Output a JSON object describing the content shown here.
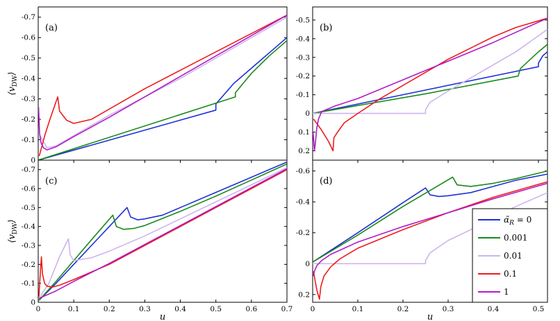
{
  "colors": {
    "0": "#1f2fd6",
    "0.001": "#1a8a1a",
    "0.01": "#cdb4ee",
    "0.1": "#ee1b1b",
    "1": "#b01cc6"
  },
  "legend": {
    "title_symbol": "α̃",
    "title_subscript": "R",
    "entries": [
      {
        "key": "0",
        "label": "= 0"
      },
      {
        "key": "0.001",
        "label": "0.001"
      },
      {
        "key": "0.01",
        "label": "0.01"
      },
      {
        "key": "0.1",
        "label": "0.1"
      },
      {
        "key": "1",
        "label": "1"
      }
    ]
  },
  "chart_data": [
    {
      "panel": "(a)",
      "type": "line",
      "xlabel": "u",
      "ylabel": "⟨v_DW⟩",
      "xlim": [
        0,
        0.7
      ],
      "ylim": [
        0,
        -0.75
      ],
      "xticks": [],
      "yticks": [
        0,
        -0.1,
        -0.2,
        -0.3,
        -0.4,
        -0.5,
        -0.6,
        -0.7
      ],
      "ytick_labels": [
        "0",
        "-0.1",
        "-0.2",
        "-0.3",
        "-0.4",
        "-0.5",
        "-0.6",
        "-0.7"
      ],
      "series": [
        {
          "key": "0",
          "x": [
            0,
            0.5,
            0.5,
            0.55,
            0.6,
            0.65,
            0.7
          ],
          "y": [
            0,
            -0.245,
            -0.275,
            -0.375,
            -0.45,
            -0.525,
            -0.6
          ]
        },
        {
          "key": "0.001",
          "x": [
            0,
            0.555,
            0.555,
            0.6,
            0.65,
            0.7
          ],
          "y": [
            0,
            -0.31,
            -0.33,
            -0.425,
            -0.51,
            -0.585
          ]
        },
        {
          "key": "0.01",
          "x": [
            0.005,
            0.025,
            0.05,
            0.1,
            0.2,
            0.3,
            0.4,
            0.5,
            0.6,
            0.7
          ],
          "y": [
            -0.12,
            -0.06,
            -0.07,
            -0.12,
            -0.22,
            -0.31,
            -0.4,
            -0.5,
            -0.6,
            -0.7
          ]
        },
        {
          "key": "0.1",
          "x": [
            0.003,
            0.02,
            0.035,
            0.055,
            0.06,
            0.08,
            0.1,
            0.15,
            0.2,
            0.3,
            0.4,
            0.5,
            0.6,
            0.7
          ],
          "y": [
            -0.02,
            -0.13,
            -0.21,
            -0.31,
            -0.24,
            -0.195,
            -0.18,
            -0.2,
            -0.25,
            -0.35,
            -0.44,
            -0.53,
            -0.62,
            -0.71
          ]
        },
        {
          "key": "1",
          "x": [
            0.001,
            0.004,
            0.008,
            0.015,
            0.025,
            0.05,
            0.1,
            0.2,
            0.3,
            0.4,
            0.5,
            0.6,
            0.7
          ],
          "y": [
            -0.26,
            -0.13,
            -0.085,
            -0.06,
            -0.05,
            -0.065,
            -0.115,
            -0.21,
            -0.31,
            -0.41,
            -0.51,
            -0.61,
            -0.71
          ]
        }
      ]
    },
    {
      "panel": "(b)",
      "type": "line",
      "xlabel": "u",
      "ylabel": "",
      "xlim": [
        0,
        0.52
      ],
      "ylim": [
        0.25,
        -0.57
      ],
      "xticks": [],
      "yticks": [
        0.2,
        0.1,
        0,
        -0.1,
        -0.2,
        -0.3,
        -0.4,
        -0.5
      ],
      "ytick_labels": [
        "0.2",
        "0.1",
        "0",
        "-0.1",
        "-0.2",
        "-0.3",
        "-0.4",
        "-0.5"
      ],
      "series": [
        {
          "key": "0",
          "x": [
            0,
            0.25,
            0.5,
            0.5,
            0.51,
            0.52
          ],
          "y": [
            0,
            -0.125,
            -0.25,
            -0.27,
            -0.31,
            -0.33
          ]
        },
        {
          "key": "0.001",
          "x": [
            0,
            0.25,
            0.455,
            0.46,
            0.48,
            0.5,
            0.52
          ],
          "y": [
            0,
            -0.105,
            -0.2,
            -0.24,
            -0.285,
            -0.33,
            -0.37
          ]
        },
        {
          "key": "0.01",
          "x": [
            0,
            0.25,
            0.25,
            0.26,
            0.3,
            0.35,
            0.4,
            0.45,
            0.52
          ],
          "y": [
            0,
            0,
            -0.02,
            -0.06,
            -0.12,
            -0.19,
            -0.26,
            -0.33,
            -0.45
          ]
        },
        {
          "key": "0.1",
          "x": [
            0.002,
            0.02,
            0.035,
            0.045,
            0.047,
            0.055,
            0.07,
            0.1,
            0.15,
            0.2,
            0.25,
            0.3,
            0.35,
            0.4,
            0.45,
            0.52
          ],
          "y": [
            0.03,
            0.09,
            0.15,
            0.2,
            0.13,
            0.1,
            0.05,
            0,
            -0.08,
            -0.15,
            -0.22,
            -0.29,
            -0.35,
            -0.41,
            -0.46,
            -0.51
          ]
        },
        {
          "key": "1",
          "x": [
            0.001,
            0.004,
            0.006,
            0.009,
            0.013,
            0.02,
            0.05,
            0.1,
            0.2,
            0.3,
            0.4,
            0.52
          ],
          "y": [
            0.1,
            0.2,
            0.16,
            0.08,
            0.03,
            -0.01,
            -0.04,
            -0.08,
            -0.18,
            -0.28,
            -0.38,
            -0.51
          ]
        }
      ]
    },
    {
      "panel": "(c)",
      "type": "line",
      "xlabel": "u",
      "ylabel": "⟨v_DW⟩",
      "xlim": [
        0,
        0.7
      ],
      "ylim": [
        0,
        -0.75
      ],
      "xticks": [
        0,
        0.1,
        0.2,
        0.3,
        0.4,
        0.5,
        0.6,
        0.7
      ],
      "xtick_labels": [
        "0",
        "0.1",
        "0.2",
        "0.3",
        "0.4",
        "0.5",
        "0.6",
        "0.7"
      ],
      "yticks": [
        0,
        -0.1,
        -0.2,
        -0.3,
        -0.4,
        -0.5,
        -0.6,
        -0.7
      ],
      "ytick_labels": [
        "0",
        "-0.1",
        "-0.2",
        "-0.3",
        "-0.4",
        "-0.5",
        "-0.6",
        "-0.7"
      ],
      "series": [
        {
          "key": "0",
          "x": [
            0.002,
            0.05,
            0.1,
            0.15,
            0.2,
            0.25,
            0.26,
            0.28,
            0.3,
            0.35,
            0.4,
            0.5,
            0.6,
            0.7
          ],
          "y": [
            -0.01,
            -0.1,
            -0.2,
            -0.3,
            -0.4,
            -0.5,
            -0.45,
            -0.435,
            -0.44,
            -0.46,
            -0.5,
            -0.58,
            -0.66,
            -0.74
          ]
        },
        {
          "key": "0.001",
          "x": [
            0.002,
            0.05,
            0.1,
            0.15,
            0.21,
            0.22,
            0.24,
            0.27,
            0.3,
            0.4,
            0.5,
            0.6,
            0.7
          ],
          "y": [
            -0.01,
            -0.11,
            -0.22,
            -0.33,
            -0.46,
            -0.4,
            -0.385,
            -0.39,
            -0.405,
            -0.48,
            -0.56,
            -0.645,
            -0.73
          ]
        },
        {
          "key": "0.01",
          "x": [
            0.002,
            0.03,
            0.06,
            0.085,
            0.09,
            0.1,
            0.15,
            0.2,
            0.3,
            0.4,
            0.5,
            0.6,
            0.7
          ],
          "y": [
            -0.02,
            -0.1,
            -0.24,
            -0.335,
            -0.25,
            -0.22,
            -0.235,
            -0.27,
            -0.35,
            -0.44,
            -0.53,
            -0.62,
            -0.71
          ]
        },
        {
          "key": "0.1",
          "x": [
            0.002,
            0.005,
            0.009,
            0.012,
            0.018,
            0.025,
            0.04,
            0.06,
            0.1,
            0.2,
            0.3,
            0.4,
            0.5,
            0.6,
            0.7
          ],
          "y": [
            -0.03,
            -0.13,
            -0.24,
            -0.15,
            -0.1,
            -0.085,
            -0.08,
            -0.09,
            -0.12,
            -0.2,
            -0.3,
            -0.4,
            -0.5,
            -0.6,
            -0.7
          ]
        },
        {
          "key": "1",
          "x": [
            0.002,
            0.02,
            0.05,
            0.1,
            0.2,
            0.3,
            0.4,
            0.5,
            0.6,
            0.7
          ],
          "y": [
            -0.02,
            -0.035,
            -0.06,
            -0.11,
            -0.205,
            -0.305,
            -0.405,
            -0.505,
            -0.605,
            -0.705
          ]
        }
      ]
    },
    {
      "panel": "(d)",
      "type": "line",
      "xlabel": "u",
      "ylabel": "",
      "xlim": [
        0,
        0.52
      ],
      "ylim": [
        0.25,
        -0.67
      ],
      "xticks": [
        0,
        0.1,
        0.2,
        0.3,
        0.4,
        0.5
      ],
      "xtick_labels": [
        "0",
        "0.1",
        "0.2",
        "0.3",
        "0.4",
        "0.5"
      ],
      "yticks": [
        0.2,
        0,
        -0.2,
        -0.4,
        -0.6
      ],
      "ytick_labels": [
        "0.2",
        "0",
        "-0.2",
        "-0.4",
        "-0.6"
      ],
      "series": [
        {
          "key": "0",
          "x": [
            0,
            0.1,
            0.2,
            0.25,
            0.26,
            0.28,
            0.3,
            0.35,
            0.4,
            0.45,
            0.52
          ],
          "y": [
            -0.01,
            -0.2,
            -0.395,
            -0.49,
            -0.445,
            -0.435,
            -0.44,
            -0.46,
            -0.5,
            -0.54,
            -0.58
          ]
        },
        {
          "key": "0.001",
          "x": [
            0,
            0.1,
            0.2,
            0.31,
            0.32,
            0.35,
            0.4,
            0.45,
            0.52
          ],
          "y": [
            -0.01,
            -0.185,
            -0.37,
            -0.56,
            -0.51,
            -0.5,
            -0.52,
            -0.55,
            -0.6
          ]
        },
        {
          "key": "0.01",
          "x": [
            0,
            0.25,
            0.25,
            0.26,
            0.3,
            0.35,
            0.4,
            0.45,
            0.52
          ],
          "y": [
            0,
            0,
            -0.02,
            -0.07,
            -0.15,
            -0.22,
            -0.3,
            -0.37,
            -0.46
          ]
        },
        {
          "key": "0.1",
          "x": [
            0.002,
            0.006,
            0.01,
            0.015,
            0.018,
            0.025,
            0.04,
            0.06,
            0.1,
            0.2,
            0.3,
            0.4,
            0.52
          ],
          "y": [
            0.05,
            0.12,
            0.18,
            0.23,
            0.15,
            0.08,
            0.02,
            -0.03,
            -0.1,
            -0.22,
            -0.33,
            -0.43,
            -0.53
          ]
        },
        {
          "key": "1",
          "x": [
            0.001,
            0.005,
            0.01,
            0.02,
            0.04,
            0.07,
            0.1,
            0.2,
            0.3,
            0.4,
            0.52
          ],
          "y": [
            0.08,
            0.04,
            0.01,
            -0.02,
            -0.06,
            -0.1,
            -0.14,
            -0.24,
            -0.33,
            -0.42,
            -0.52
          ]
        }
      ]
    }
  ]
}
